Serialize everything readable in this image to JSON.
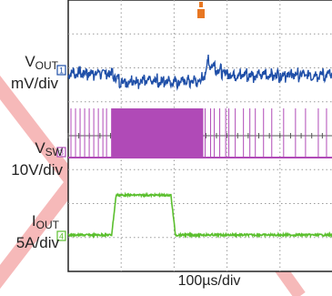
{
  "chart_data": {
    "type": "line",
    "title": "",
    "time_scale": "100µs/div",
    "xlim": [
      0,
      580
    ],
    "grid": true,
    "trigger_marker_color": "#e87722",
    "series": [
      {
        "name": "VOUT",
        "label": "V",
        "label_sub": "OUT",
        "scale": "mV/div",
        "channel_marker": "1",
        "color": "#1f4fa8",
        "x": [
          0,
          90,
          100,
          110,
          120,
          220,
          290,
          300,
          305,
          310,
          320,
          330,
          345,
          360,
          380,
          400,
          420,
          440,
          460,
          480,
          500,
          520,
          540,
          560,
          580
        ],
        "y": [
          0.0,
          0.0,
          -0.3,
          -0.8,
          -0.9,
          -0.9,
          -0.9,
          -0.2,
          1.3,
          1.0,
          0.7,
          0.3,
          0.0,
          -0.2,
          -0.2,
          -0.2,
          -0.2,
          -0.2,
          -0.2,
          -0.2,
          -0.2,
          -0.2,
          -0.2,
          -0.2,
          -0.2
        ]
      },
      {
        "name": "VSW",
        "label": "V",
        "label_sub": "SW",
        "scale": "10V/div",
        "channel_marker": "3",
        "color": "#b04ab7",
        "burst_start_x": 94,
        "burst_end_x": 296,
        "x": [
          0,
          94,
          296,
          580
        ],
        "y": [
          0,
          1,
          1,
          0
        ]
      },
      {
        "name": "IOUT",
        "label": "I",
        "label_sub": "OUT",
        "scale": "5A/div",
        "channel_marker": "4",
        "color": "#5bbf2e",
        "x": [
          0,
          95,
          105,
          225,
          235,
          580
        ],
        "y": [
          0.0,
          0.0,
          4.6,
          4.6,
          0.0,
          0.0
        ]
      }
    ]
  }
}
